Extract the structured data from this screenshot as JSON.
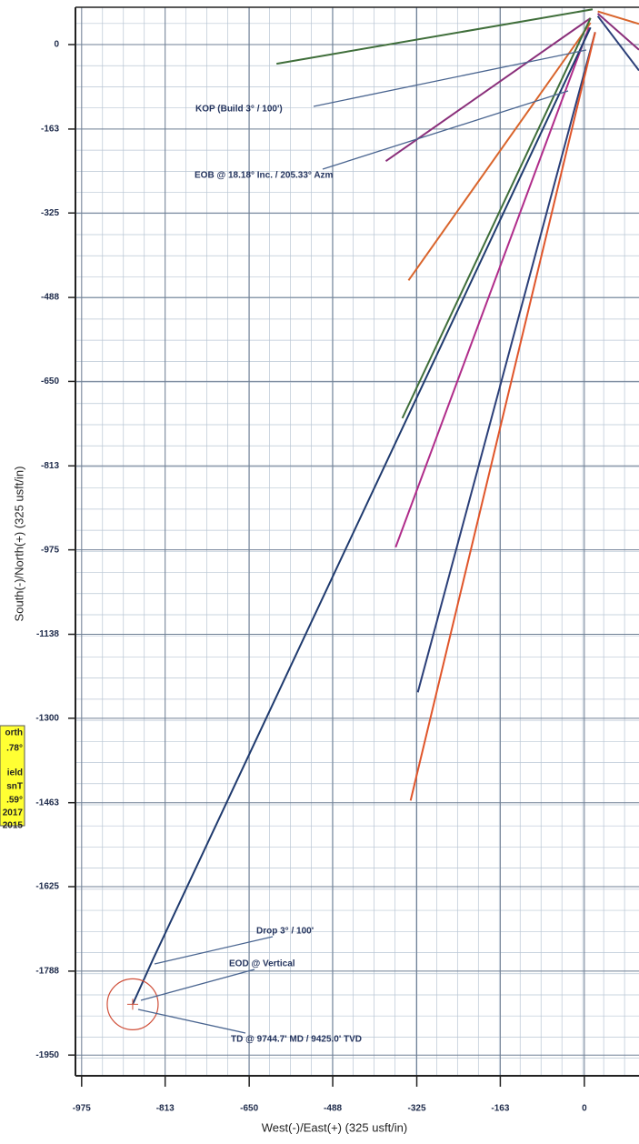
{
  "chart_data": {
    "type": "line",
    "xlabel": "West(-)/East(+) (325 usft/in)",
    "ylabel": "South(-)/North(+) (325 usft/in)",
    "xlim": [
      -987,
      106
    ],
    "ylim": [
      -1990,
      72
    ],
    "xticks": [
      -975,
      -813,
      -650,
      -488,
      -325,
      -163,
      0
    ],
    "yticks": [
      0,
      -163,
      -325,
      -488,
      -650,
      -813,
      -975,
      -1138,
      -1300,
      -1463,
      -1625,
      -1788,
      -1950
    ],
    "grid": true,
    "minor_divisions": 4,
    "series": [
      {
        "color": "#3f6e3a",
        "x": [
          16,
          -597
        ],
        "values": [
          68,
          -37
        ]
      },
      {
        "color": "#8a2f7a",
        "x": [
          12,
          -385
        ],
        "values": [
          51,
          -225
        ]
      },
      {
        "color": "#d9642b",
        "x": [
          12,
          -341
        ],
        "values": [
          42,
          -455
        ]
      },
      {
        "color": "#3f6e3a",
        "x": [
          12,
          -353
        ],
        "values": [
          51,
          -721
        ]
      },
      {
        "color": "#b02c8a",
        "x": [
          9,
          -366
        ],
        "values": [
          33,
          -970
        ]
      },
      {
        "color": "#2b3f78",
        "x": [
          21,
          -323
        ],
        "values": [
          24,
          -1250
        ]
      },
      {
        "color": "#e0552a",
        "x": [
          21,
          -337
        ],
        "values": [
          24,
          -1459
        ]
      },
      {
        "color": "#1f3a6e",
        "x": [
          12,
          -836,
          -876
        ],
        "values": [
          33,
          -1764,
          -1852
        ]
      },
      {
        "color": "#d9642b",
        "x": [
          26,
          106
        ],
        "values": [
          64,
          40
        ]
      },
      {
        "color": "#8a2f7a",
        "x": [
          26,
          106
        ],
        "values": [
          60,
          -10
        ]
      },
      {
        "color": "#2b3f78",
        "x": [
          26,
          106
        ],
        "values": [
          55,
          -50
        ]
      }
    ],
    "annotations": [
      "KOP (Build 3° / 100')",
      "EOB @ 18.18° Inc. / 205.33° Azm",
      "Drop 3° / 100'",
      "EOD @ Vertical",
      "TD @ 9744.7' MD / 9425.0' TVD"
    ],
    "info_box": [
      "orth",
      ".78°",
      "ield",
      "snT",
      ".59°",
      "2017",
      "2015"
    ]
  }
}
